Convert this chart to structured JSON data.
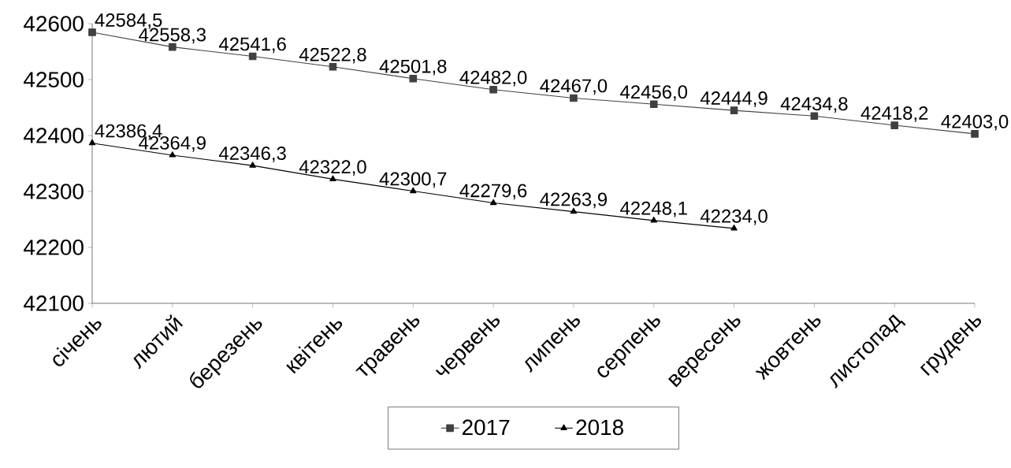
{
  "chart_data": {
    "type": "line",
    "categories": [
      "січень",
      "лютий",
      "березень",
      "квітень",
      "травень",
      "червень",
      "липень",
      "серпень",
      "вересень",
      "жовтень",
      "листопад",
      "грудень"
    ],
    "series": [
      {
        "name": "2017",
        "color": "#404040",
        "marker": "square",
        "values": [
          42584.5,
          42558.3,
          42541.6,
          42522.8,
          42501.8,
          42482.0,
          42467.0,
          42456.0,
          42444.9,
          42434.8,
          42418.2,
          42403.0
        ],
        "value_labels": [
          "42584,5",
          "42558,3",
          "42541,6",
          "42522,8",
          "42501,8",
          "42482,0",
          "42467,0",
          "42456,0",
          "42444,9",
          "42434,8",
          "42418,2",
          "42403,0"
        ]
      },
      {
        "name": "2018",
        "color": "#000000",
        "marker": "triangle",
        "values": [
          42386.4,
          42364.9,
          42346.3,
          42322.0,
          42300.7,
          42279.6,
          42263.9,
          42248.1,
          42234.0,
          null,
          null,
          null
        ],
        "value_labels": [
          "42386,4",
          "42364,9",
          "42346,3",
          "42322,0",
          "42300,7",
          "42279,6",
          "42263,9",
          "42248,1",
          "42234,0",
          null,
          null,
          null
        ]
      }
    ],
    "ylim": [
      42100,
      42600
    ],
    "yticks": [
      42100,
      42200,
      42300,
      42400,
      42500,
      42600
    ],
    "grid": false,
    "legend": "bottom",
    "line_style": "solid"
  }
}
